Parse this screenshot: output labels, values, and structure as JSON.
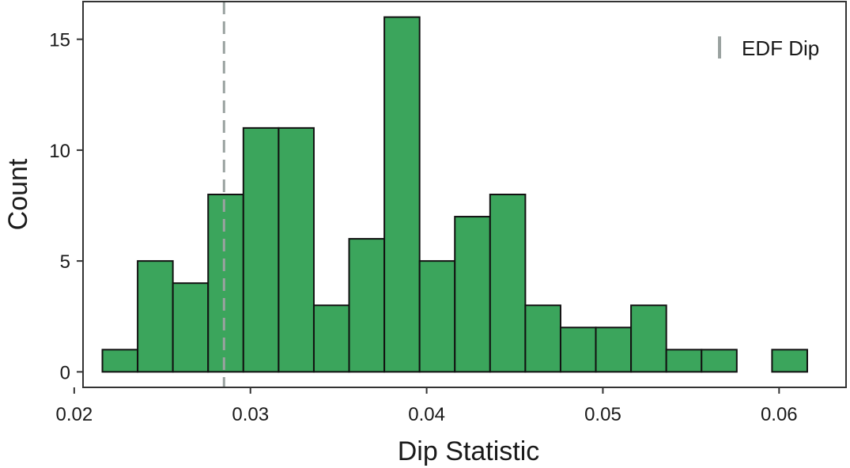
{
  "chart_data": {
    "type": "bar",
    "subtype": "histogram",
    "xlabel": "Dip Statistic",
    "ylabel": "Count",
    "xlim": [
      0.0205,
      0.0638
    ],
    "ylim": [
      -0.7,
      16.7
    ],
    "x_ticks": [
      0.02,
      0.03,
      0.04,
      0.05,
      0.06
    ],
    "x_tick_labels": [
      "0.02",
      "0.03",
      "0.04",
      "0.05",
      "0.06"
    ],
    "y_ticks": [
      0,
      5,
      10,
      15
    ],
    "y_tick_labels": [
      "0",
      "5",
      "10",
      "15"
    ],
    "bin_width": 0.002,
    "bins": [
      {
        "x0": 0.0216,
        "x1": 0.0236,
        "count": 1
      },
      {
        "x0": 0.0236,
        "x1": 0.0256,
        "count": 5
      },
      {
        "x0": 0.0256,
        "x1": 0.0276,
        "count": 4
      },
      {
        "x0": 0.0276,
        "x1": 0.0296,
        "count": 8
      },
      {
        "x0": 0.0296,
        "x1": 0.0316,
        "count": 11
      },
      {
        "x0": 0.0316,
        "x1": 0.0336,
        "count": 11
      },
      {
        "x0": 0.0336,
        "x1": 0.0356,
        "count": 3
      },
      {
        "x0": 0.0356,
        "x1": 0.0376,
        "count": 6
      },
      {
        "x0": 0.0376,
        "x1": 0.0396,
        "count": 16
      },
      {
        "x0": 0.0396,
        "x1": 0.0416,
        "count": 5
      },
      {
        "x0": 0.0416,
        "x1": 0.0436,
        "count": 7
      },
      {
        "x0": 0.0436,
        "x1": 0.0456,
        "count": 8
      },
      {
        "x0": 0.0456,
        "x1": 0.0476,
        "count": 3
      },
      {
        "x0": 0.0476,
        "x1": 0.0496,
        "count": 2
      },
      {
        "x0": 0.0496,
        "x1": 0.0516,
        "count": 2
      },
      {
        "x0": 0.0516,
        "x1": 0.0536,
        "count": 3
      },
      {
        "x0": 0.0536,
        "x1": 0.0556,
        "count": 1
      },
      {
        "x0": 0.0556,
        "x1": 0.0576,
        "count": 1
      },
      {
        "x0": 0.0576,
        "x1": 0.0596,
        "count": 0
      },
      {
        "x0": 0.0596,
        "x1": 0.0616,
        "count": 1
      }
    ],
    "reference_line": {
      "name": "EDF Dip",
      "x": 0.0285,
      "style": "dashed"
    },
    "legend": {
      "position": "top-right",
      "entries": [
        "EDF Dip"
      ]
    },
    "grid": false,
    "colors": {
      "bar_fill": "#3ba55c",
      "bar_edge": "#111111",
      "reference_line": "#9aa2a0",
      "axis": "#333333"
    }
  }
}
